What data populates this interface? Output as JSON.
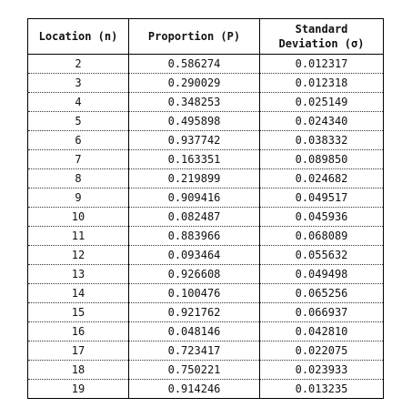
{
  "table": {
    "headers": [
      {
        "line1": "Location (n)",
        "line2": ""
      },
      {
        "line1": "Proportion (P)",
        "line2": ""
      },
      {
        "line1": "Standard",
        "line2": "Deviation (σ)"
      }
    ],
    "rows": [
      [
        "2",
        "0.586274",
        "0.012317"
      ],
      [
        "3",
        "0.290029",
        "0.012318"
      ],
      [
        "4",
        "0.348253",
        "0.025149"
      ],
      [
        "5",
        "0.495898",
        "0.024340"
      ],
      [
        "6",
        "0.937742",
        "0.038332"
      ],
      [
        "7",
        "0.163351",
        "0.089850"
      ],
      [
        "8",
        "0.219899",
        "0.024682"
      ],
      [
        "9",
        "0.909416",
        "0.049517"
      ],
      [
        "10",
        "0.082487",
        "0.045936"
      ],
      [
        "11",
        "0.883966",
        "0.068089"
      ],
      [
        "12",
        "0.093464",
        "0.055632"
      ],
      [
        "13",
        "0.926608",
        "0.049498"
      ],
      [
        "14",
        "0.100476",
        "0.065256"
      ],
      [
        "15",
        "0.921762",
        "0.066937"
      ],
      [
        "16",
        "0.048146",
        "0.042810"
      ],
      [
        "17",
        "0.723417",
        "0.022075"
      ],
      [
        "18",
        "0.750221",
        "0.023933"
      ],
      [
        "19",
        "0.914246",
        "0.013235"
      ]
    ]
  }
}
